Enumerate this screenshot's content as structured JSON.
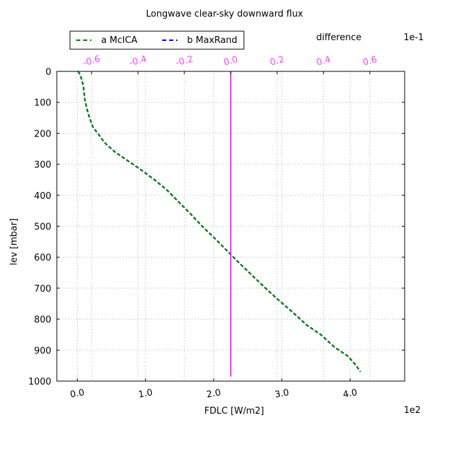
{
  "chart_data": {
    "type": "line",
    "title": "Longwave clear-sky downward flux",
    "xlabel": "FDLC [W/m2]",
    "ylabel": "lev [mbar]",
    "x_offset_label": "1e2",
    "xlim": [
      -0.3,
      4.8
    ],
    "x_ticks": [
      0.0,
      1.0,
      2.0,
      3.0,
      4.0
    ],
    "x_tick_labels": [
      "0.0",
      "1.0",
      "2.0",
      "3.0",
      "4.0"
    ],
    "ylim": [
      1000,
      0
    ],
    "y_ticks": [
      0,
      100,
      200,
      300,
      400,
      500,
      600,
      700,
      800,
      900,
      1000
    ],
    "y_tick_labels": [
      "0",
      "100",
      "200",
      "300",
      "400",
      "500",
      "600",
      "700",
      "800",
      "900",
      "1000"
    ],
    "grid": true,
    "top_axis": {
      "label": "difference",
      "offset_label": "1e-1",
      "color": "#ff44ff",
      "xlim": [
        -0.75,
        0.75
      ],
      "ticks": [
        -0.6,
        -0.4,
        -0.2,
        0.0,
        0.2,
        0.4,
        0.6
      ],
      "tick_labels": [
        "-0.6",
        "-0.4",
        "-0.2",
        "0.0",
        "0.2",
        "0.4",
        "0.6"
      ]
    },
    "legend": {
      "position": "top-left, above plot"
    },
    "series": [
      {
        "name": "a McICA",
        "color": "#008000",
        "style": "dashed",
        "axis": "bottom",
        "x": [
          0.01,
          0.04,
          0.07,
          0.09,
          0.1,
          0.11,
          0.14,
          0.18,
          0.23,
          0.3,
          0.4,
          0.55,
          0.75,
          0.95,
          1.13,
          1.3,
          1.48,
          1.66,
          1.83,
          2.02,
          2.2,
          2.38,
          2.57,
          2.76,
          2.96,
          3.17,
          3.37,
          3.57,
          3.77,
          3.97,
          4.09,
          4.15
        ],
        "y": [
          0,
          10,
          30,
          50,
          70,
          90,
          120,
          150,
          180,
          200,
          230,
          260,
          290,
          320,
          350,
          380,
          420,
          460,
          500,
          540,
          580,
          620,
          660,
          700,
          740,
          780,
          820,
          850,
          890,
          920,
          950,
          970
        ]
      },
      {
        "name": "b MaxRand",
        "color": "#0000ff",
        "style": "dashed",
        "axis": "bottom",
        "x": [
          0.01,
          0.04,
          0.07,
          0.09,
          0.1,
          0.11,
          0.14,
          0.18,
          0.23,
          0.3,
          0.4,
          0.55,
          0.75,
          0.95,
          1.13,
          1.3,
          1.48,
          1.66,
          1.83,
          2.02,
          2.2,
          2.38,
          2.57,
          2.76,
          2.96,
          3.17,
          3.37,
          3.57,
          3.77,
          3.97,
          4.09,
          4.15
        ],
        "y": [
          0,
          10,
          30,
          50,
          70,
          90,
          120,
          150,
          180,
          200,
          230,
          260,
          290,
          320,
          350,
          380,
          420,
          460,
          500,
          540,
          580,
          620,
          660,
          700,
          740,
          780,
          820,
          850,
          890,
          920,
          950,
          970
        ]
      },
      {
        "name": "",
        "color": "#ff00ff",
        "style": "solid",
        "axis": "top",
        "x": [
          0.0,
          0.0
        ],
        "y": [
          0,
          985
        ]
      }
    ]
  }
}
